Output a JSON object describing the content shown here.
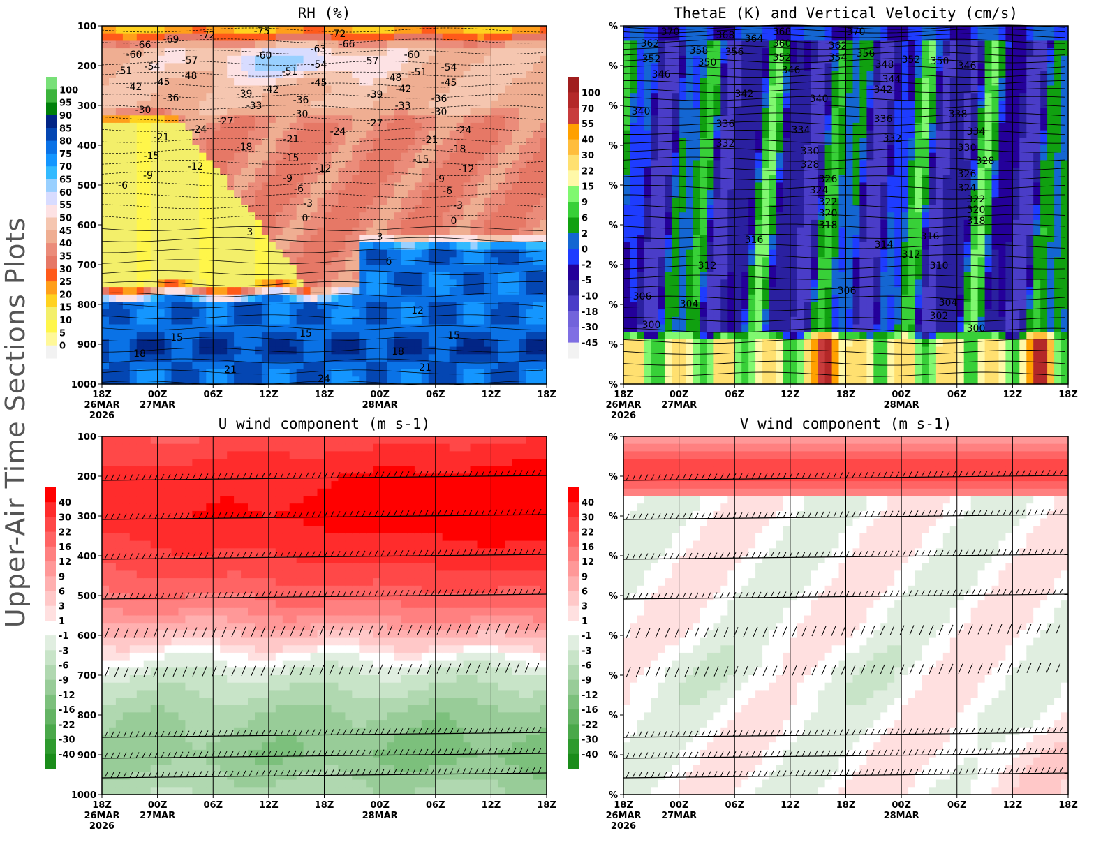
{
  "side_title": "Upper-Air Time Sections Plots",
  "time_axis": {
    "ticks": [
      "18Z",
      "00Z",
      "06Z",
      "12Z",
      "18Z",
      "00Z",
      "06Z",
      "12Z",
      "18Z"
    ],
    "dates": [
      "26MAR",
      "27MAR",
      "",
      "",
      "",
      "28MAR",
      "",
      "",
      ""
    ],
    "year": "2026"
  },
  "chart_data": [
    {
      "type": "heatmap",
      "title": "RH (%)",
      "y_ticks": [
        "100",
        "200",
        "300",
        "400",
        "500",
        "600",
        "700",
        "800",
        "900",
        "1000"
      ],
      "ylim": [
        1000,
        100
      ],
      "colorbar": {
        "levels": [
          "0",
          "5",
          "10",
          "15",
          "20",
          "25",
          "30",
          "35",
          "40",
          "45",
          "50",
          "55",
          "60",
          "65",
          "70",
          "75",
          "80",
          "85",
          "90",
          "95",
          "100"
        ],
        "colors": [
          "#f2f2f2",
          "#fff899",
          "#fff64a",
          "#f3ef6a",
          "#ffd21f",
          "#ff9f1a",
          "#ff5a1a",
          "#e67866",
          "#eb8c7a",
          "#efae92",
          "#f5c6b0",
          "#fde2e4",
          "#d8dcff",
          "#99d0ff",
          "#33baff",
          "#1496ff",
          "#0a72e6",
          "#0446b2",
          "#022585",
          "#00800a",
          "#3cb43c",
          "#78e078"
        ]
      },
      "contour_labels": [
        "-75",
        "-72",
        "-72",
        "-69",
        "-66",
        "-66",
        "-63",
        "-60",
        "-60",
        "-60",
        "-57",
        "-57",
        "-54",
        "-54",
        "-54",
        "-51",
        "-51",
        "-51",
        "-48",
        "-48",
        "-45",
        "-45",
        "-45",
        "-42",
        "-42",
        "-42",
        "-39",
        "-39",
        "-36",
        "-36",
        "-36",
        "-33",
        "-33",
        "-30",
        "-30",
        "-30",
        "-27",
        "-27",
        "-24",
        "-24",
        "-24",
        "-21",
        "-21",
        "-21",
        "-18",
        "-18",
        "-15",
        "-15",
        "-15",
        "-12",
        "-12",
        "-12",
        "-9",
        "-9",
        "-9",
        "-6",
        "-6",
        "-6",
        "-3",
        "-3",
        "0",
        "0",
        "3",
        "3",
        "6",
        "12",
        "15",
        "15",
        "15",
        "18",
        "18",
        "21",
        "21",
        "24"
      ]
    },
    {
      "type": "heatmap",
      "title": "ThetaE (K) and Vertical Velocity (cm/s)",
      "y_ticks": [
        "%",
        "%",
        "%",
        "%",
        "%",
        "%",
        "%",
        "%",
        "%",
        "%"
      ],
      "colorbar": {
        "levels": [
          "-45",
          "-30",
          "-18",
          "-10",
          "-5",
          "-2",
          "0",
          "2",
          "6",
          "9",
          "15",
          "22",
          "30",
          "40",
          "55",
          "70",
          "100"
        ],
        "colors": [
          "#f2f2f2",
          "#7f6fe3",
          "#7264db",
          "#4a3dc8",
          "#2a20a0",
          "#24009a",
          "#1e3cff",
          "#1466d2",
          "#10a010",
          "#38d038",
          "#80f870",
          "#fff8a8",
          "#ffe070",
          "#ffbd3c",
          "#ffa000",
          "#c83c3c",
          "#b42828",
          "#a01e1e"
        ]
      },
      "contour_labels": [
        "370",
        "368",
        "364",
        "368",
        "360",
        "370",
        "362",
        "358",
        "356",
        "362",
        "354",
        "356",
        "352",
        "350",
        "352",
        "348",
        "352",
        "350",
        "346",
        "346",
        "346",
        "344",
        "342",
        "342",
        "340",
        "340",
        "338",
        "336",
        "336",
        "334",
        "334",
        "332",
        "332",
        "330",
        "330",
        "328",
        "328",
        "326",
        "326",
        "324",
        "324",
        "322",
        "322",
        "320",
        "320",
        "318",
        "318",
        "316",
        "316",
        "314",
        "312",
        "312",
        "310",
        "306",
        "306",
        "304",
        "304",
        "302",
        "300",
        "300"
      ]
    },
    {
      "type": "heatmap",
      "title": "U wind component (m s-1)",
      "y_ticks": [
        "100",
        "200",
        "300",
        "400",
        "500",
        "600",
        "700",
        "800",
        "900",
        "1000"
      ],
      "ylim": [
        1000,
        100
      ],
      "colorbar": {
        "levels": [
          "-40",
          "-30",
          "-22",
          "-16",
          "-12",
          "-9",
          "-6",
          "-3",
          "-1",
          "1",
          "3",
          "6",
          "9",
          "12",
          "16",
          "22",
          "30",
          "40"
        ],
        "colors": [
          "#1a8c1a",
          "#2e9a2e",
          "#4aa84a",
          "#64b464",
          "#7cc07c",
          "#98cc98",
          "#b0d8b0",
          "#c8e4c8",
          "#e0eee0",
          "#ffffff",
          "#ffe0e0",
          "#ffc8c8",
          "#ffb0b0",
          "#ff9898",
          "#ff8080",
          "#ff6464",
          "#ff4848",
          "#ff2c2c",
          "#ff0000"
        ]
      }
    },
    {
      "type": "heatmap",
      "title": "V wind component (m s-1)",
      "y_ticks": [
        "%",
        "%",
        "%",
        "%",
        "%",
        "%",
        "%",
        "%",
        "%",
        "%"
      ],
      "colorbar": {
        "levels": [
          "-40",
          "-30",
          "-22",
          "-16",
          "-12",
          "-9",
          "-6",
          "-3",
          "-1",
          "1",
          "3",
          "6",
          "9",
          "12",
          "16",
          "22",
          "30",
          "40"
        ],
        "colors": [
          "#1a8c1a",
          "#2e9a2e",
          "#4aa84a",
          "#64b464",
          "#7cc07c",
          "#98cc98",
          "#b0d8b0",
          "#c8e4c8",
          "#e0eee0",
          "#ffffff",
          "#ffe0e0",
          "#ffc8c8",
          "#ffb0b0",
          "#ff9898",
          "#ff8080",
          "#ff6464",
          "#ff4848",
          "#ff2c2c",
          "#ff0000"
        ]
      }
    }
  ]
}
